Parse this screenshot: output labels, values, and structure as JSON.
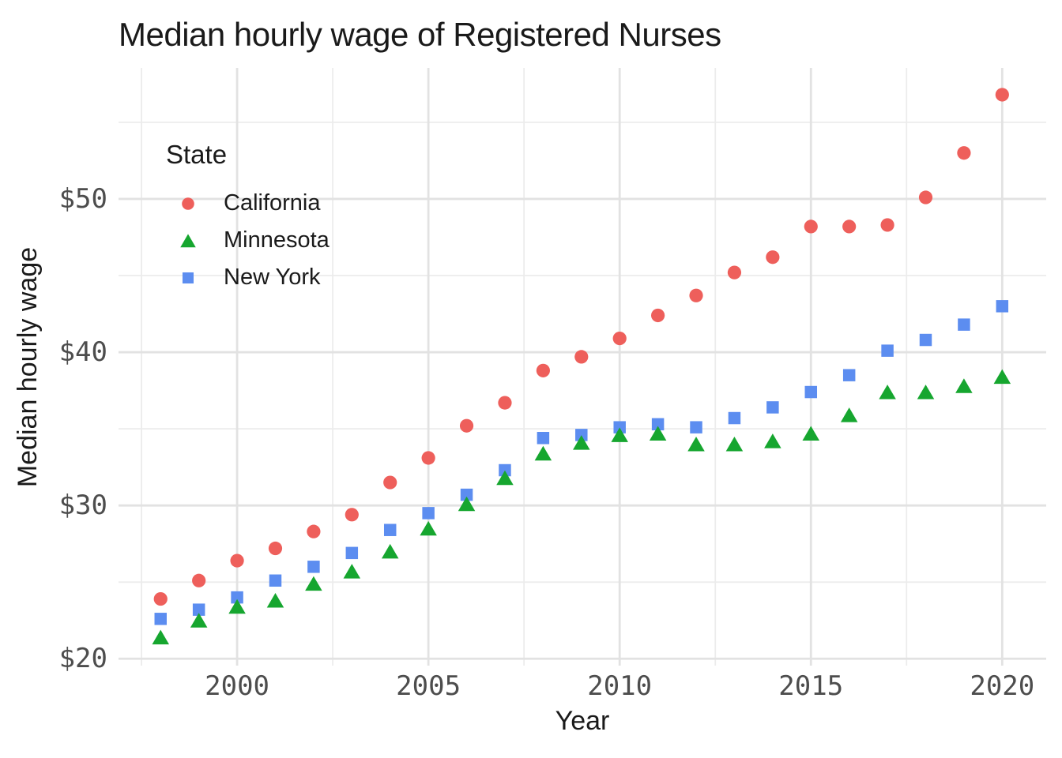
{
  "chart_data": {
    "type": "scatter",
    "title": "Median hourly wage of Registered Nurses",
    "xlabel": "Year",
    "ylabel": "Median hourly wage",
    "legend_title": "State",
    "legend_position": "inside top-left",
    "grid": true,
    "x": [
      1998,
      1999,
      2000,
      2001,
      2002,
      2003,
      2004,
      2005,
      2006,
      2007,
      2008,
      2009,
      2010,
      2011,
      2012,
      2013,
      2014,
      2015,
      2016,
      2017,
      2018,
      2019,
      2020
    ],
    "series": [
      {
        "name": "California",
        "marker": "circle",
        "color": "#EE5F5B",
        "values": [
          23.9,
          25.1,
          26.4,
          27.2,
          28.3,
          29.4,
          31.5,
          33.1,
          35.2,
          36.7,
          38.8,
          39.7,
          40.9,
          42.4,
          43.7,
          45.2,
          46.2,
          48.2,
          48.2,
          48.3,
          50.1,
          53.0,
          56.8
        ]
      },
      {
        "name": "Minnesota",
        "marker": "triangle",
        "color": "#16A62F",
        "values": [
          21.4,
          22.5,
          23.4,
          23.8,
          24.9,
          25.7,
          27.0,
          28.5,
          30.1,
          31.8,
          33.4,
          34.1,
          34.6,
          34.7,
          34.0,
          34.0,
          34.2,
          34.7,
          35.9,
          37.4,
          37.4,
          37.8,
          38.4
        ]
      },
      {
        "name": "New York",
        "marker": "square",
        "color": "#5C8DF0",
        "values": [
          22.6,
          23.2,
          24.0,
          25.1,
          26.0,
          26.9,
          28.4,
          29.5,
          30.7,
          32.3,
          34.4,
          34.6,
          35.1,
          35.3,
          35.1,
          35.7,
          36.4,
          37.4,
          38.5,
          40.1,
          40.8,
          41.8,
          43.0
        ]
      }
    ],
    "x_ticks": {
      "major": [
        2000,
        2005,
        2010,
        2015,
        2020
      ],
      "minor": [
        1997.5,
        2002.5,
        2007.5,
        2012.5,
        2017.5
      ],
      "major_labels": [
        "2000",
        "2005",
        "2010",
        "2015",
        "2020"
      ]
    },
    "y_ticks": {
      "major": [
        20,
        30,
        40,
        50
      ],
      "minor": [
        25,
        35,
        45,
        55
      ],
      "major_labels": [
        "$20",
        "$30",
        "$40",
        "$50"
      ]
    },
    "axis_ranges": {
      "x": [
        1996.9,
        2021.15
      ],
      "y": [
        19.55,
        58.55
      ]
    }
  },
  "colors": {
    "background": "#FFFFFF",
    "grid_major": "#E2E2E2",
    "grid_minor": "#ECECEC",
    "tick_label": "#4D4D4D",
    "text": "#1A1A1A"
  }
}
